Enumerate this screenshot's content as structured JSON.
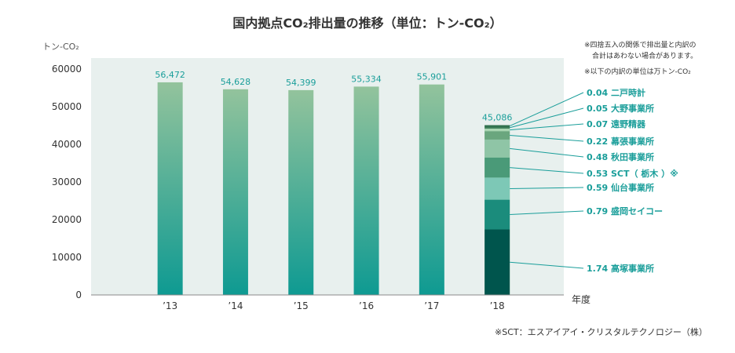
{
  "chart_data": {
    "type": "bar",
    "title": "国内拠点CO₂排出量の推移（単位：トン-CO₂）",
    "ylabel": "トン-CO₂",
    "xlabel": "年度",
    "ylim": [
      0,
      60000
    ],
    "yticks": [
      "0",
      "10000",
      "20000",
      "30000",
      "40000",
      "50000",
      "60000"
    ],
    "categories": [
      "’13",
      "’14",
      "’15",
      "’16",
      "’17",
      "’18"
    ],
    "values": [
      56472,
      54628,
      54399,
      55334,
      55901,
      45086
    ],
    "value_labels": [
      "56,472",
      "54,628",
      "54,399",
      "55,334",
      "55,901",
      "45,086"
    ],
    "grid": false,
    "colors": {
      "plot_bg": "#e8f0ee",
      "bar_top": "#93c39c",
      "bar_bottom": "#0e9a92",
      "accent": "#1a9e9a",
      "axis": "#8a8a8a"
    },
    "breakdown": {
      "category": "’18",
      "segments": [
        {
          "value": 1.74,
          "name": "高塚事業所",
          "label": "1.74 高塚事業所",
          "color": "#00554d"
        },
        {
          "value": 0.79,
          "name": "盛岡セイコー",
          "label": "0.79 盛岡セイコー",
          "color": "#1b8c7c"
        },
        {
          "value": 0.59,
          "name": "仙台事業所",
          "label": "0.59 仙台事業所",
          "color": "#7dc8b6"
        },
        {
          "value": 0.53,
          "name": "SCT（栃木）※",
          "label": "0.53 SCT（ 栃木 ）※",
          "color": "#4a9a78"
        },
        {
          "value": 0.48,
          "name": "秋田事業所",
          "label": "0.48 秋田事業所",
          "color": "#8fc5a6"
        },
        {
          "value": 0.22,
          "name": "幕張事業所",
          "label": "0.22 幕張事業所",
          "color": "#6aa67e"
        },
        {
          "value": 0.07,
          "name": "遠野精器",
          "label": "0.07 遠野精器",
          "color": "#a9d6b2"
        },
        {
          "value": 0.05,
          "name": "大野事業所",
          "label": "0.05 大野事業所",
          "color": "#3d7d58"
        },
        {
          "value": 0.04,
          "name": "二戸時計",
          "label": "0.04 二戸時計",
          "color": "#2d6e4c"
        }
      ]
    },
    "notes": [
      "※四捨五入の関係で排出量と内訳の",
      "合計はあわない場合があります。",
      "※以下の内訳の単位は万トン-CO₂"
    ],
    "footnote": "※SCT：エスアイアイ・クリスタルテクノロジー（株）"
  }
}
